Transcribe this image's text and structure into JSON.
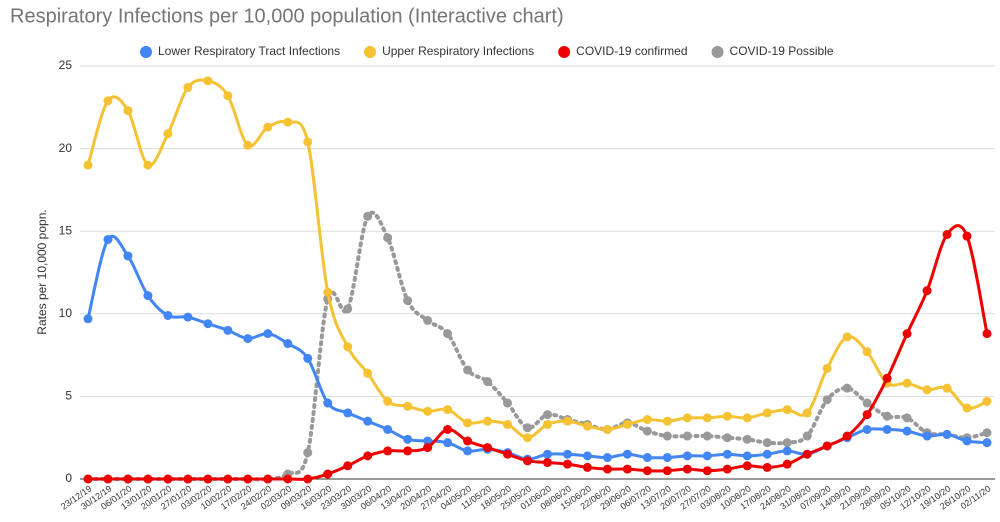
{
  "chart_data": {
    "type": "line",
    "title": "Respiratory Infections per 10,000 population (Interactive chart)",
    "y_label": "Rates per 10,000 popn.",
    "categories": [
      "23/12/19",
      "30/12/19",
      "06/01/20",
      "13/01/20",
      "20/01/20",
      "27/01/20",
      "03/02/20",
      "10/02/20",
      "17/02/20",
      "24/02/20",
      "02/03/20",
      "09/03/20",
      "16/03/20",
      "23/03/20",
      "30/03/20",
      "06/04/20",
      "13/04/20",
      "20/04/20",
      "27/04/20",
      "04/05/20",
      "11/05/20",
      "18/05/20",
      "25/05/20",
      "01/06/20",
      "08/06/20",
      "15/06/20",
      "22/06/20",
      "29/06/20",
      "06/07/20",
      "13/07/20",
      "20/07/20",
      "27/07/20",
      "03/08/20",
      "10/08/20",
      "17/08/20",
      "24/08/20",
      "31/08/20",
      "07/09/20",
      "14/09/20",
      "21/09/20",
      "28/09/20",
      "05/10/20",
      "12/10/20",
      "19/10/20",
      "26/10/20",
      "02/11/20"
    ],
    "series": [
      {
        "name": "Lower Respiratory Tract Infections",
        "color": "#4285f4",
        "dashed": false,
        "values": [
          9.7,
          14.5,
          13.5,
          11.1,
          9.9,
          9.8,
          9.4,
          9.0,
          8.5,
          8.8,
          8.2,
          7.3,
          4.6,
          4.0,
          3.5,
          3.0,
          2.4,
          2.3,
          2.2,
          1.7,
          1.8,
          1.6,
          1.2,
          1.5,
          1.5,
          1.4,
          1.3,
          1.5,
          1.3,
          1.3,
          1.4,
          1.4,
          1.5,
          1.4,
          1.5,
          1.7,
          1.5,
          2.0,
          2.5,
          3.0,
          3.0,
          2.9,
          2.6,
          2.7,
          2.3,
          2.2
        ]
      },
      {
        "name": "Upper Respiratory Infections",
        "color": "#f4c232",
        "dashed": false,
        "values": [
          19.0,
          22.9,
          22.3,
          19.0,
          20.9,
          23.7,
          24.1,
          23.2,
          20.2,
          21.3,
          21.6,
          20.4,
          11.3,
          8.0,
          6.4,
          4.7,
          4.4,
          4.1,
          4.2,
          3.4,
          3.5,
          3.3,
          2.5,
          3.3,
          3.5,
          3.2,
          3.0,
          3.3,
          3.6,
          3.5,
          3.7,
          3.7,
          3.8,
          3.7,
          4.0,
          4.2,
          4.0,
          6.7,
          8.6,
          7.7,
          5.8,
          5.8,
          5.4,
          5.5,
          4.3,
          4.7
        ]
      },
      {
        "name": "COVID-19 confirmed",
        "color": "#ee0000",
        "dashed": false,
        "values": [
          0,
          0,
          0,
          0,
          0,
          0,
          0,
          0,
          0,
          0,
          0,
          0,
          0.3,
          0.8,
          1.4,
          1.7,
          1.7,
          1.9,
          3.0,
          2.3,
          1.9,
          1.5,
          1.1,
          1.0,
          0.9,
          0.7,
          0.6,
          0.6,
          0.5,
          0.5,
          0.6,
          0.5,
          0.6,
          0.8,
          0.7,
          0.9,
          1.5,
          2.0,
          2.6,
          3.9,
          6.1,
          8.8,
          11.4,
          14.8,
          14.7,
          8.8
        ]
      },
      {
        "name": "COVID-19 Possible",
        "color": "#999999",
        "dashed": true,
        "values": [
          0,
          0,
          0,
          0,
          0,
          0,
          0,
          0,
          0,
          0,
          0.3,
          1.6,
          10.9,
          10.3,
          15.9,
          14.6,
          10.8,
          9.6,
          8.8,
          6.6,
          5.9,
          4.6,
          3.1,
          3.9,
          3.6,
          3.3,
          3.0,
          3.4,
          2.9,
          2.6,
          2.6,
          2.6,
          2.5,
          2.4,
          2.2,
          2.2,
          2.6,
          4.8,
          5.5,
          4.6,
          3.8,
          3.7,
          2.8,
          2.7,
          2.5,
          2.8
        ]
      }
    ],
    "ylim": [
      0,
      25
    ],
    "yticks": [
      0,
      5,
      10,
      15,
      20,
      25
    ],
    "grid": true,
    "legend": "top"
  }
}
